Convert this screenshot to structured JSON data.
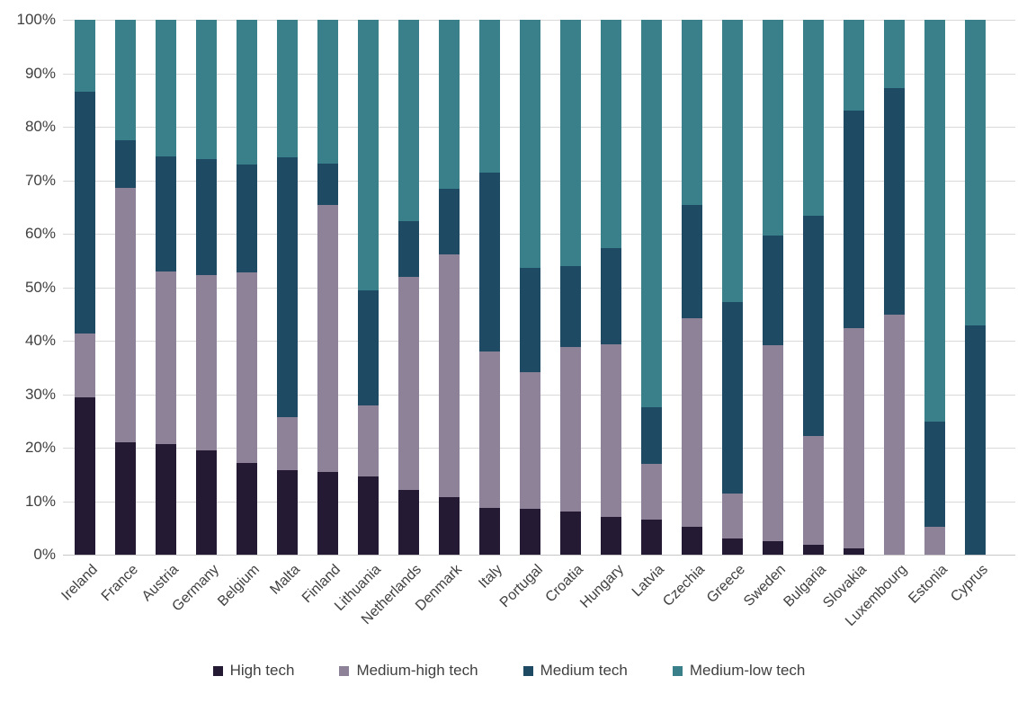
{
  "style": {
    "background": "#ffffff",
    "text_color": "#404040",
    "gridline_color": "#d9d9d9",
    "axis_line_color": "#c6c6c6"
  },
  "chart_data": {
    "type": "bar",
    "stacking": "percent",
    "orientation": "vertical",
    "title": "",
    "xlabel": "",
    "ylabel": "",
    "grid": "horizontal",
    "legend_position": "bottom",
    "y_axis": {
      "min": 0,
      "max": 100,
      "tick_step": 10,
      "ticks": [
        "0%",
        "10%",
        "20%",
        "30%",
        "40%",
        "50%",
        "60%",
        "70%",
        "80%",
        "90%",
        "100%"
      ]
    },
    "categories": [
      "Ireland",
      "France",
      "Austria",
      "Germany",
      "Belgium",
      "Malta",
      "Finland",
      "Lithuania",
      "Netherlands",
      "Denmark",
      "Italy",
      "Portugal",
      "Croatia",
      "Hungary",
      "Latvia",
      "Czechia",
      "Greece",
      "Sweden",
      "Bulgaria",
      "Slovakia",
      "Luxembourg",
      "Estonia",
      "Cyprus"
    ],
    "series": [
      {
        "name": "High tech",
        "color": "#251A33",
        "values": [
          29.4,
          21.0,
          20.7,
          19.5,
          17.1,
          15.8,
          15.4,
          14.6,
          12.1,
          10.8,
          8.7,
          8.5,
          8.0,
          7.0,
          6.5,
          5.2,
          3.1,
          2.5,
          1.9,
          1.1,
          0,
          0,
          0
        ]
      },
      {
        "name": "Medium-high tech",
        "color": "#8E8299",
        "values": [
          11.9,
          47.5,
          32.3,
          32.7,
          35.7,
          9.9,
          49.9,
          13.3,
          39.8,
          45.3,
          29.3,
          25.7,
          30.8,
          32.4,
          10.5,
          39.0,
          8.4,
          36.7,
          20.3,
          41.3,
          44.9,
          5.2,
          0
        ]
      },
      {
        "name": "Medium tech",
        "color": "#1E4A63",
        "values": [
          45.2,
          9.0,
          21.5,
          21.8,
          20.2,
          48.6,
          7.8,
          21.5,
          10.5,
          12.3,
          33.5,
          19.5,
          15.2,
          17.9,
          10.6,
          21.1,
          35.8,
          20.5,
          41.1,
          40.6,
          42.3,
          19.7,
          42.9
        ]
      },
      {
        "name": "Medium-low tech",
        "color": "#3A808A",
        "values": [
          13.5,
          22.5,
          25.5,
          26.0,
          27.0,
          25.7,
          26.9,
          50.6,
          37.6,
          31.6,
          28.5,
          46.3,
          46.0,
          42.7,
          72.4,
          34.7,
          52.7,
          40.3,
          36.7,
          17.0,
          12.8,
          75.1,
          57.1
        ]
      }
    ]
  }
}
